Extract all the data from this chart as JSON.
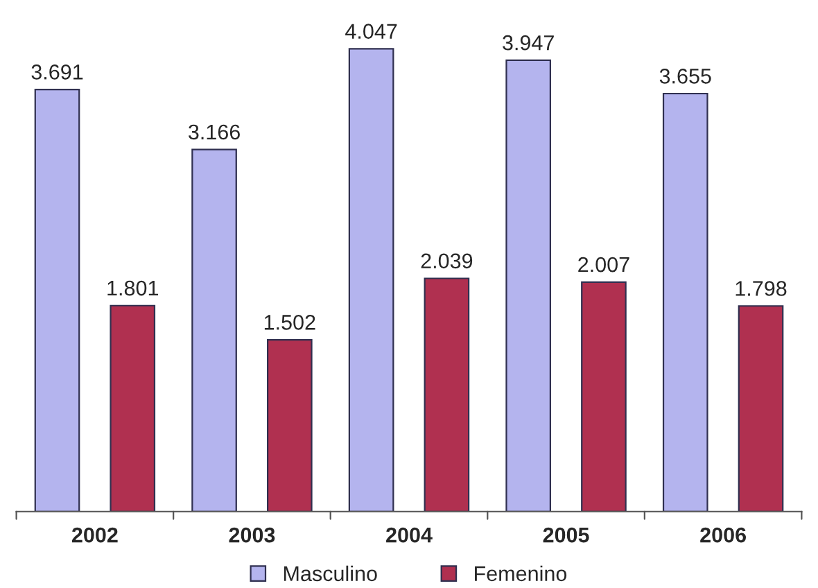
{
  "chart_data": {
    "type": "bar",
    "categories": [
      "2002",
      "2003",
      "2004",
      "2005",
      "2006"
    ],
    "series": [
      {
        "name": "Masculino",
        "color": "#b4b4ee",
        "values": [
          3691,
          3166,
          4047,
          3947,
          3655
        ],
        "value_labels": [
          "3.691",
          "3.166",
          "4.047",
          "3.947",
          "3.655"
        ]
      },
      {
        "name": "Femenino",
        "color": "#b03050",
        "values": [
          1801,
          1502,
          2039,
          2007,
          1798
        ],
        "value_labels": [
          "1.801",
          "1.502",
          "2.039",
          "2.007",
          "1.798"
        ]
      }
    ],
    "legend": "bottom",
    "grid": false,
    "tick_labels": "x"
  }
}
